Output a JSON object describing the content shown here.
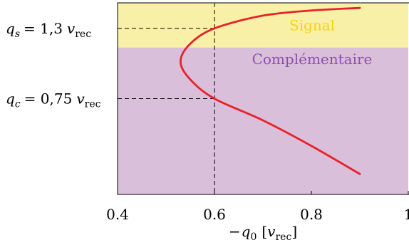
{
  "chart_data": {
    "type": "line",
    "xlabel": {
      "sign": "−",
      "symbol": "q",
      "subscript": "0",
      "unit_open": "[",
      "unit_symbol": "v",
      "unit_subscript": "rec",
      "unit_close": "]"
    },
    "xlim": [
      0.4,
      1.0
    ],
    "ylim": [
      0.0,
      1.5
    ],
    "x_ticks": [
      {
        "value": 0.4,
        "label": "0.4"
      },
      {
        "value": 0.6,
        "label": "0.6"
      },
      {
        "value": 0.8,
        "label": "0.8"
      },
      {
        "value": 1.0,
        "label": "1"
      }
    ],
    "grid": false,
    "regions": [
      {
        "label": "Signal",
        "y_from": 1.15,
        "y_to": 1.5,
        "color": "#F8F0A6",
        "text_color": "#F5D21E"
      },
      {
        "label": "Complémentaire",
        "y_from": 0.0,
        "y_to": 1.15,
        "color": "#DABFDB",
        "text_color": "#8C4FAE"
      }
    ],
    "curve": {
      "color": "#E8212A",
      "points": [
        {
          "x": 0.9,
          "y": 0.16
        },
        {
          "x": 0.8,
          "y": 0.38
        },
        {
          "x": 0.7,
          "y": 0.58
        },
        {
          "x": 0.6,
          "y": 0.75
        },
        {
          "x": 0.55,
          "y": 0.9
        },
        {
          "x": 0.53,
          "y": 1.04
        },
        {
          "x": 0.55,
          "y": 1.18
        },
        {
          "x": 0.6,
          "y": 1.3
        },
        {
          "x": 0.7,
          "y": 1.4
        },
        {
          "x": 0.8,
          "y": 1.44
        },
        {
          "x": 0.9,
          "y": 1.46
        }
      ]
    },
    "reference_lines": [
      {
        "orientation": "horizontal",
        "value": 1.3,
        "to_x": 0.6,
        "label": {
          "symbol": "q",
          "subscript": "s",
          "equals": "= 1,3",
          "unit_symbol": "v",
          "unit_subscript": "rec"
        }
      },
      {
        "orientation": "horizontal",
        "value": 0.75,
        "to_x": 0.6,
        "label": {
          "symbol": "q",
          "subscript": "c",
          "equals": "= 0,75",
          "unit_symbol": "v",
          "unit_subscript": "rec"
        }
      },
      {
        "orientation": "vertical",
        "value": 0.6
      }
    ]
  }
}
